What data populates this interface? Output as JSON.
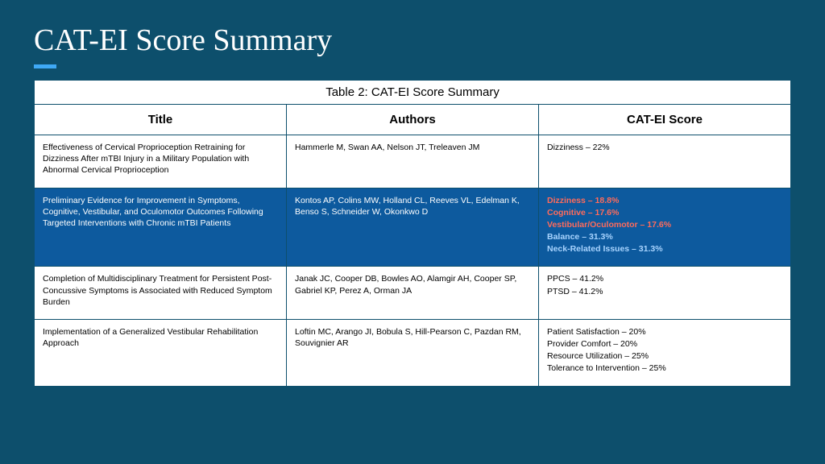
{
  "slide": {
    "title": "CAT-EI Score Summary",
    "accent_color": "#3fa9f5",
    "background_color": "#0d4f6c"
  },
  "table": {
    "caption": "Table 2: CAT-EI Score Summary",
    "columns": [
      "Title",
      "Authors",
      "CAT-EI Score"
    ],
    "column_widths_pct": [
      32,
      31,
      37
    ],
    "rows": [
      {
        "highlighted": false,
        "title": "Effectiveness of Cervical Proprioception Retraining for Dizziness After mTBI Injury in a Military Population with Abnormal Cervical Proprioception",
        "authors": "Hammerle M, Swan AA, Nelson JT, Treleaven JM",
        "scores": [
          {
            "text": "Dizziness – 22%",
            "style": "plain"
          }
        ]
      },
      {
        "highlighted": true,
        "title": "Preliminary Evidence for Improvement in Symptoms, Cognitive, Vestibular, and Oculomotor Outcomes Following Targeted Interventions with Chronic mTBI Patients",
        "authors": "Kontos AP, Colins MW, Holland CL, Reeves VL, Edelman K, Benso S, Schneider W, Okonkwo D",
        "scores": [
          {
            "text": "Dizziness – 18.8%",
            "style": "red"
          },
          {
            "text": "Cognitive – 17.6%",
            "style": "red"
          },
          {
            "text": "Vestibular/Oculomotor – 17.6%",
            "style": "red"
          },
          {
            "text": "Balance – 31.3%",
            "style": "blue-bold"
          },
          {
            "text": "Neck-Related Issues – 31.3%",
            "style": "blue-bold"
          }
        ]
      },
      {
        "highlighted": false,
        "title": "Completion of Multidisciplinary Treatment for Persistent Post-Concussive Symptoms is Associated with Reduced Symptom Burden",
        "authors": "Janak JC, Cooper DB, Bowles AO, Alamgir AH, Cooper SP, Gabriel KP, Perez A, Orman JA",
        "scores": [
          {
            "text": "PPCS – 41.2%",
            "style": "plain"
          },
          {
            "text": "PTSD – 41.2%",
            "style": "plain"
          }
        ]
      },
      {
        "highlighted": false,
        "title": "Implementation of a Generalized Vestibular Rehabilitation Approach",
        "authors": "Loftin MC, Arango JI, Bobula S, Hill-Pearson C, Pazdan RM, Souvignier AR",
        "scores": [
          {
            "text": "Patient Satisfaction – 20%",
            "style": "plain"
          },
          {
            "text": "Provider Comfort – 20%",
            "style": "plain"
          },
          {
            "text": "Resource Utilization – 25%",
            "style": "plain"
          },
          {
            "text": "Tolerance to Intervention – 25%",
            "style": "plain"
          }
        ]
      }
    ]
  },
  "styles": {
    "title_fontsize": 38,
    "caption_fontsize": 15,
    "header_fontsize": 15,
    "body_fontsize": 10.5,
    "highlight_bg": "#0d5a9e",
    "red_color": "#e74c3c",
    "blue_bold_color": "#0d4f8a",
    "border_color": "#0d4f6c",
    "table_bg": "#ffffff"
  }
}
